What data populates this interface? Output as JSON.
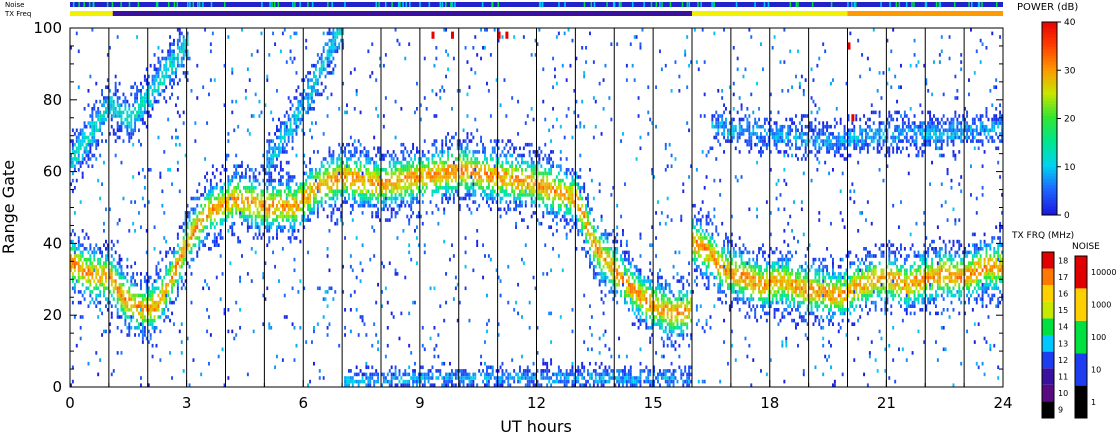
{
  "chart_data": {
    "type": "heatmap",
    "title": "",
    "xlabel": "UT hours",
    "ylabel": "Range Gate",
    "xlim": [
      0,
      24
    ],
    "ylim": [
      0,
      100
    ],
    "x_ticks": [
      0,
      3,
      6,
      9,
      12,
      15,
      18,
      21,
      24
    ],
    "y_ticks": [
      0,
      20,
      40,
      60,
      80,
      100
    ],
    "grid": "vertical lines every hour",
    "top_bars": {
      "noise_label": "Noise",
      "txfreq_label": "TX Freq",
      "txfreq_segments": [
        {
          "start": 0,
          "end": 1.1,
          "color": "#f2f200"
        },
        {
          "start": 1.1,
          "end": 16,
          "color": "#3a10a0"
        },
        {
          "start": 16,
          "end": 20,
          "color": "#f2f200"
        },
        {
          "start": 20,
          "end": 24,
          "color": "#ff9a00"
        }
      ]
    },
    "features": [
      {
        "name": "band_a",
        "points": [
          [
            0,
            34
          ],
          [
            0.5,
            31
          ],
          [
            1.0,
            30
          ],
          [
            1.4,
            24
          ],
          [
            1.8,
            21
          ],
          [
            2.2,
            22
          ],
          [
            2.6,
            30
          ],
          [
            3.0,
            40
          ],
          [
            3.5,
            48
          ],
          [
            4.2,
            52
          ],
          [
            5.0,
            50
          ],
          [
            5.8,
            50
          ],
          [
            6.3,
            55
          ],
          [
            7.0,
            58
          ],
          [
            8.0,
            56
          ],
          [
            9.0,
            58
          ],
          [
            10.0,
            60
          ],
          [
            11.0,
            58
          ],
          [
            12.0,
            56
          ],
          [
            13.0,
            52
          ],
          [
            13.5,
            38
          ],
          [
            14.0,
            32
          ],
          [
            14.5,
            26
          ],
          [
            15.0,
            22
          ],
          [
            15.5,
            20
          ],
          [
            16.0,
            21
          ]
        ],
        "width": 5,
        "peak_db": 30
      },
      {
        "name": "band_b",
        "points": [
          [
            16,
            40
          ],
          [
            16.4,
            37
          ],
          [
            16.8,
            32
          ],
          [
            17.3,
            30
          ],
          [
            17.8,
            28
          ],
          [
            18.3,
            29
          ],
          [
            18.8,
            27
          ],
          [
            19.3,
            26
          ],
          [
            19.8,
            25
          ],
          [
            20.3,
            28
          ],
          [
            21.0,
            30
          ],
          [
            21.5,
            28
          ],
          [
            22.0,
            30
          ],
          [
            22.5,
            31
          ],
          [
            23.0,
            30
          ],
          [
            23.5,
            33
          ],
          [
            24.0,
            33
          ]
        ],
        "width": 5,
        "peak_db": 30
      },
      {
        "name": "band_c",
        "points": [
          [
            0,
            62
          ],
          [
            0.5,
            70
          ],
          [
            1.0,
            78
          ],
          [
            1.5,
            74
          ],
          [
            2.0,
            80
          ],
          [
            2.5,
            88
          ],
          [
            3.0,
            95
          ]
        ],
        "width": 4,
        "peak_db": 12
      },
      {
        "name": "band_d",
        "points": [
          [
            5.0,
            60
          ],
          [
            5.5,
            70
          ],
          [
            6.0,
            78
          ],
          [
            6.5,
            90
          ],
          [
            7.0,
            100
          ]
        ],
        "width": 4,
        "peak_db": 10
      },
      {
        "name": "band_e",
        "points": [
          [
            16.5,
            72
          ],
          [
            18,
            70
          ],
          [
            19.5,
            68
          ],
          [
            21,
            70
          ],
          [
            22.5,
            70
          ],
          [
            24,
            72
          ]
        ],
        "width": 3,
        "peak_db": 8
      },
      {
        "name": "ground",
        "points": [
          [
            7,
            1
          ],
          [
            10,
            2
          ],
          [
            13,
            2
          ],
          [
            16,
            2
          ]
        ],
        "width": 2,
        "peak_db": 8
      }
    ],
    "red_specks": [
      [
        9.3,
        97
      ],
      [
        9.8,
        97
      ],
      [
        11.0,
        97
      ],
      [
        11.2,
        97
      ],
      [
        20.0,
        94
      ],
      [
        20.1,
        74
      ]
    ]
  },
  "colorbars": {
    "power": {
      "label": "POWER (dB)",
      "ticks": [
        0,
        10,
        20,
        30,
        40
      ],
      "min": 0,
      "max": 40
    },
    "txfreq": {
      "label": "TX FRQ (MHz)",
      "ticks": [
        9,
        10,
        11,
        12,
        13,
        14,
        15,
        16,
        17,
        18
      ],
      "colors": [
        "#000000",
        "#5a0a80",
        "#3a10a0",
        "#1e3cf0",
        "#00c8ff",
        "#00e040",
        "#c8e800",
        "#ffd000",
        "#ff7800",
        "#e00000"
      ]
    },
    "noise": {
      "label": "NOISE",
      "ticks": [
        1,
        10,
        100,
        1000,
        10000
      ],
      "colors": [
        "#000000",
        "#1e3cf0",
        "#00e040",
        "#ffd000",
        "#e00000"
      ]
    }
  }
}
